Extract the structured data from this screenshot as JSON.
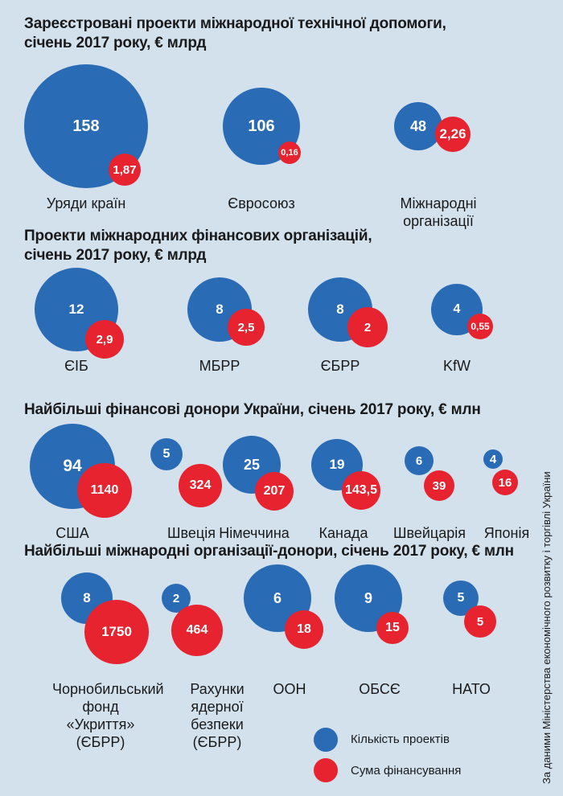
{
  "colors": {
    "background": "#d3e1ed",
    "projects": "#2a6bb5",
    "funding": "#e6232f"
  },
  "chart_data": [
    {
      "type": "bubble",
      "title": "Зареєстровані проекти міжнародної технічної допомоги, січень 2017 року, € млрд",
      "categories": [
        "Уряди країн",
        "Євросоюз",
        "Міжнародні організації"
      ],
      "projects": [
        "158",
        "106",
        "48"
      ],
      "funding": [
        "1,87",
        "0,16",
        "2,26"
      ]
    },
    {
      "type": "bubble",
      "title": "Проекти міжнародних фінансових організацій, січень 2017 року, € млрд",
      "categories": [
        "ЄІБ",
        "МБРР",
        "ЄБРР",
        "KfW"
      ],
      "projects": [
        "12",
        "8",
        "8",
        "4"
      ],
      "funding": [
        "2,9",
        "2,5",
        "2",
        "0,55"
      ]
    },
    {
      "type": "bubble",
      "title": "Найбільші фінансові донори України, січень 2017 року, € млн",
      "categories": [
        "США",
        "Швеція",
        "Німеччина",
        "Канада",
        "Швейцарія",
        "Японія"
      ],
      "projects": [
        "94",
        "5",
        "25",
        "19",
        "6",
        "4"
      ],
      "funding": [
        "1140",
        "324",
        "207",
        "143,5",
        "39",
        "16"
      ]
    },
    {
      "type": "bubble",
      "title": "Найбільші міжнародні організації-донори, січень 2017 року, € млн",
      "categories": [
        "Чорнобильський фонд «Укриття» (ЄБРР)",
        "Рахунки ядерної безпеки (ЄБРР)",
        "ООН",
        "ОБСЄ",
        "НАТО"
      ],
      "projects": [
        "8",
        "2",
        "6",
        "9",
        "5"
      ],
      "funding": [
        "1750",
        "464",
        "18",
        "15",
        "5"
      ]
    }
  ],
  "legend": {
    "projects": "Кількість проектів",
    "funding": "Сума фінансування"
  },
  "source": "За даними Міністерства економічного розвитку і торгівлі України"
}
